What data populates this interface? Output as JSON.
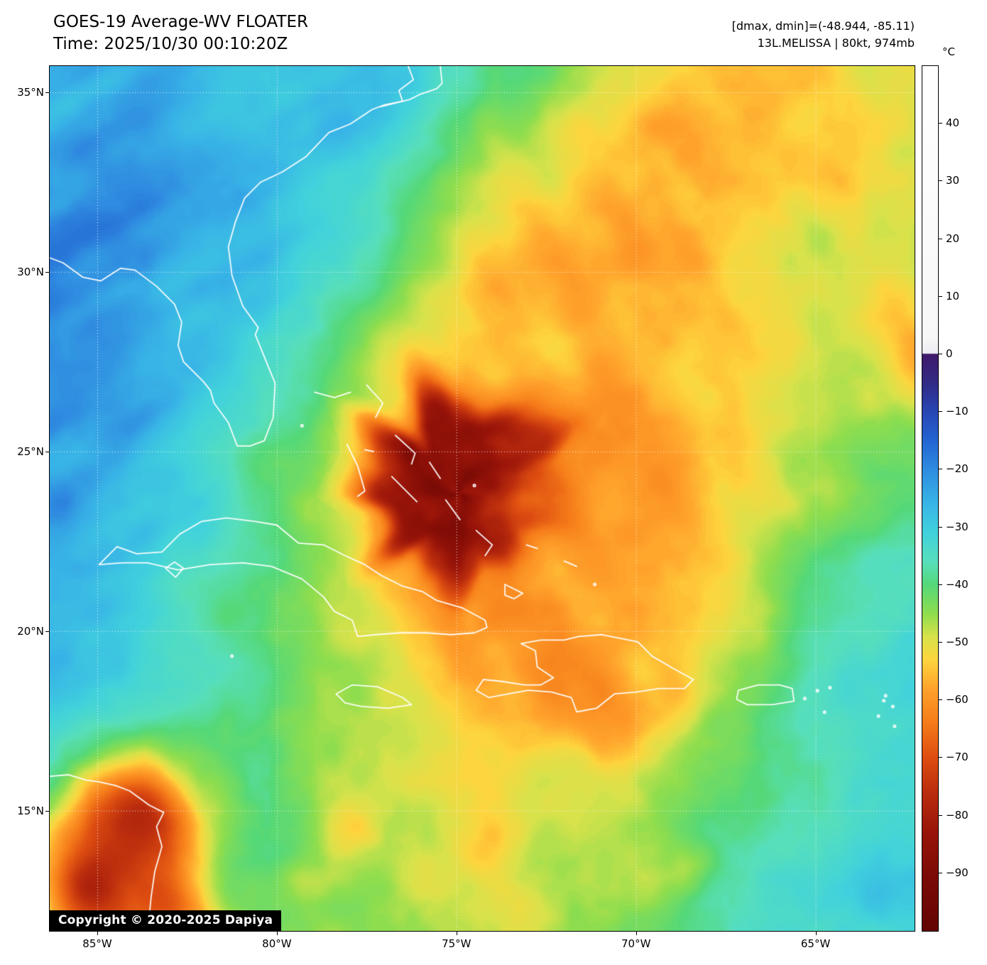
{
  "header": {
    "title": "GOES-19 Average-WV FLOATER",
    "time_line": "Time: 2025/10/30 00:10:20Z",
    "range_line": "[dmax, dmin]=(-48.944, -85.11)",
    "storm_line": "13L.MELISSA | 80kt, 974mb"
  },
  "axes": {
    "lat_labels": [
      "35°N",
      "30°N",
      "25°N",
      "20°N",
      "15°N"
    ],
    "lon_labels": [
      "85°W",
      "80°W",
      "75°W",
      "70°W",
      "65°W"
    ]
  },
  "colorbar": {
    "unit": "°C",
    "tick_labels": [
      "40",
      "30",
      "20",
      "10",
      "0",
      "−10",
      "−20",
      "−30",
      "−40",
      "−50",
      "−60",
      "−70",
      "−80",
      "−90"
    ],
    "tick_values": [
      40,
      30,
      20,
      10,
      0,
      -10,
      -20,
      -30,
      -40,
      -50,
      -60,
      -70,
      -80,
      -90
    ],
    "domain": [
      50,
      -100
    ],
    "stops": [
      [
        50,
        "#ffffff"
      ],
      [
        3,
        "#f7f7f7"
      ],
      [
        0.2,
        "#ededf3"
      ],
      [
        0,
        "#40196b"
      ],
      [
        -5,
        "#312a85"
      ],
      [
        -10,
        "#2746b4"
      ],
      [
        -15,
        "#2365d2"
      ],
      [
        -20,
        "#2f8ce0"
      ],
      [
        -26,
        "#38b5e6"
      ],
      [
        -31,
        "#41d2dc"
      ],
      [
        -36,
        "#57dfbb"
      ],
      [
        -40,
        "#55d878"
      ],
      [
        -45,
        "#8edd4e"
      ],
      [
        -49,
        "#d8e24a"
      ],
      [
        -53,
        "#fdd53e"
      ],
      [
        -58,
        "#ffa22b"
      ],
      [
        -64,
        "#f57a19"
      ],
      [
        -70,
        "#dd4d11"
      ],
      [
        -76,
        "#ba2c0d"
      ],
      [
        -83,
        "#981409"
      ],
      [
        -90,
        "#7d0b06"
      ],
      [
        -100,
        "#630404"
      ]
    ]
  },
  "overlay": {
    "copyright": "Copyright © 2020-2025 Dapiya"
  }
}
